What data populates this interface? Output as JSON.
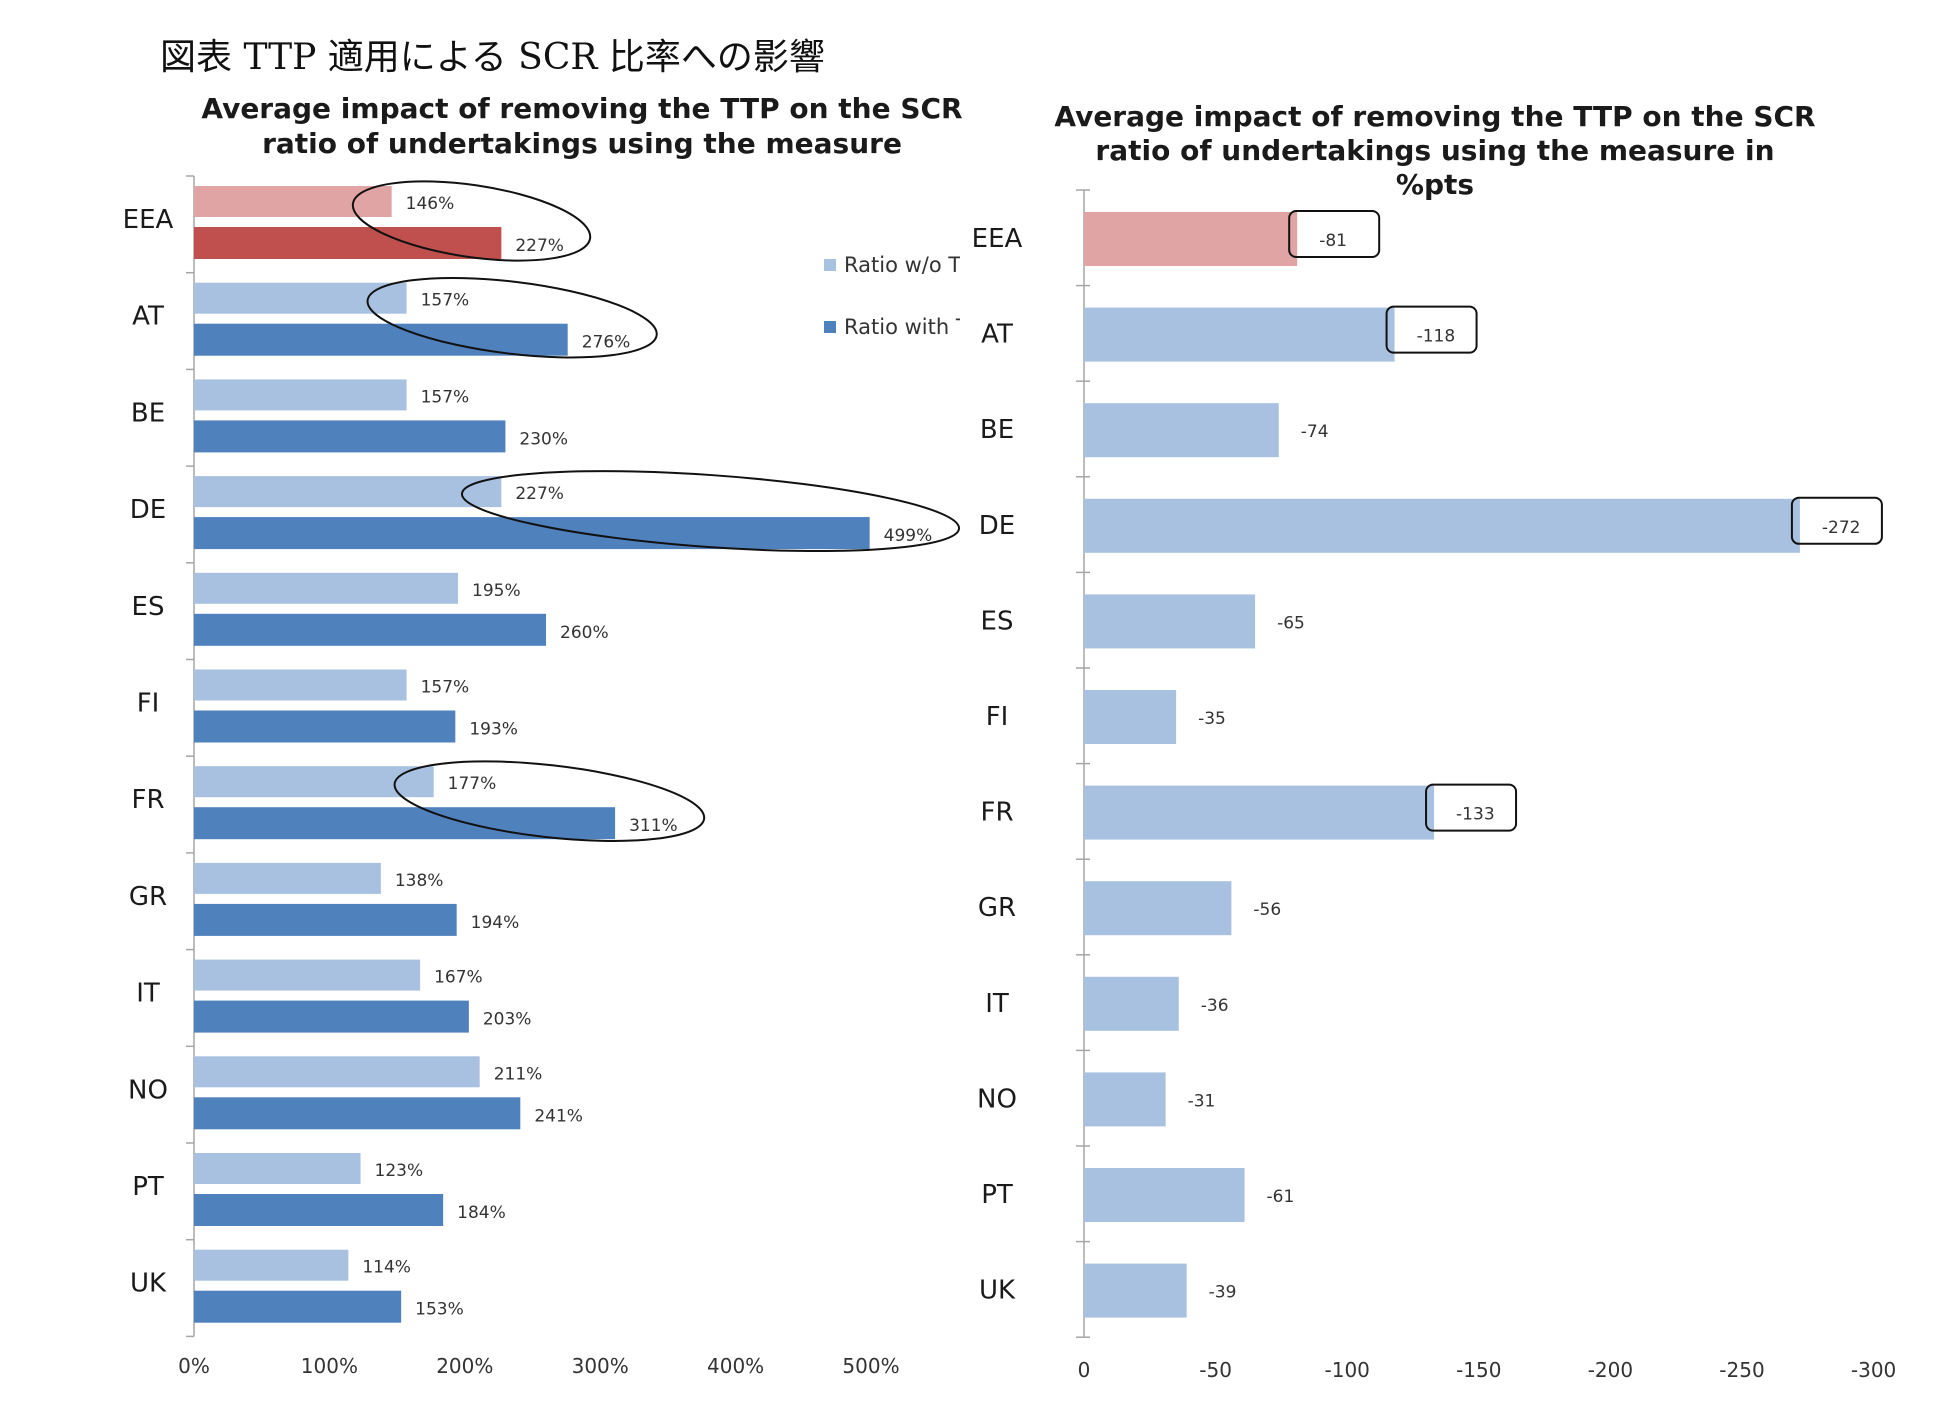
{
  "page_title": "図表 TTP 適用による SCR 比率への影響",
  "chart_data": [
    {
      "type": "bar",
      "orientation": "horizontal",
      "title_lines": [
        "Average impact of removing the TTP on the SCR",
        "ratio of undertakings using the measure"
      ],
      "categories": [
        "EEA",
        "AT",
        "BE",
        "DE",
        "ES",
        "FI",
        "FR",
        "GR",
        "IT",
        "NO",
        "PT",
        "UK"
      ],
      "series": [
        {
          "name": "Ratio w/o T",
          "legend_label": "Ratio w/o T",
          "color": "#a9c1e0",
          "highlight_color": "#e0a4a4",
          "values": [
            146,
            157,
            157,
            227,
            195,
            157,
            177,
            138,
            167,
            211,
            123,
            114
          ],
          "labels": [
            "146%",
            "157%",
            "157%",
            "227%",
            "195%",
            "157%",
            "177%",
            "138%",
            "167%",
            "211%",
            "123%",
            "114%"
          ]
        },
        {
          "name": "Ratio with T",
          "legend_label": "Ratio with T",
          "color": "#4f81bd",
          "highlight_color": "#c0504d",
          "values": [
            227,
            276,
            230,
            499,
            260,
            193,
            311,
            194,
            203,
            241,
            184,
            153
          ],
          "labels": [
            "227%",
            "276%",
            "230%",
            "499%",
            "260%",
            "193%",
            "311%",
            "194%",
            "203%",
            "241%",
            "184%",
            "153%"
          ]
        }
      ],
      "highlight_category": "EEA",
      "circled_categories": [
        "EEA",
        "AT",
        "DE",
        "FR"
      ],
      "xlim": [
        0,
        500
      ],
      "x_ticks": [
        "0%",
        "100%",
        "200%",
        "300%",
        "400%",
        "500%"
      ]
    },
    {
      "type": "bar",
      "orientation": "horizontal",
      "title_lines": [
        "Average impact of removing the TTP on the SCR",
        "ratio of undertakings using the measure in",
        "%pts"
      ],
      "categories": [
        "EEA",
        "AT",
        "BE",
        "DE",
        "ES",
        "FI",
        "FR",
        "GR",
        "IT",
        "NO",
        "PT",
        "UK"
      ],
      "values": [
        -81,
        -118,
        -74,
        -272,
        -65,
        -35,
        -133,
        -56,
        -36,
        -31,
        -61,
        -39
      ],
      "labels": [
        "-81",
        "-118",
        "-74",
        "-272",
        "-65",
        "-35",
        "-133",
        "-56",
        "-36",
        "-31",
        "-61",
        "-39"
      ],
      "color": "#a9c1e0",
      "highlight_color": "#e0a4a4",
      "highlight_category": "EEA",
      "boxed_categories": [
        "EEA",
        "AT",
        "DE",
        "FR"
      ],
      "xlim": [
        0,
        -300
      ],
      "x_ticks": [
        "0",
        "-50",
        "-100",
        "-150",
        "-200",
        "-250",
        "-300"
      ]
    }
  ]
}
